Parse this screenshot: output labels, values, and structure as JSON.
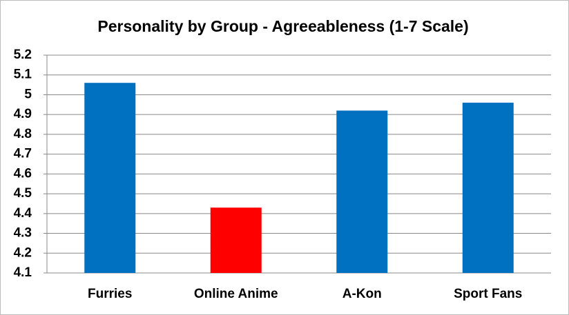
{
  "chart_data": {
    "type": "bar",
    "title": "Personality by Group - Agreeableness (1-7 Scale)",
    "categories": [
      "Furries",
      "Online Anime",
      "A-Kon",
      "Sport Fans"
    ],
    "values": [
      5.06,
      4.43,
      4.92,
      4.96
    ],
    "colors": [
      "#0070c0",
      "#ff0000",
      "#0070c0",
      "#0070c0"
    ],
    "ylim": [
      4.1,
      5.2
    ],
    "yticks": [
      4.1,
      4.2,
      4.3,
      4.4,
      4.5,
      4.6,
      4.7,
      4.8,
      4.9,
      5,
      5.1,
      5.2
    ],
    "grid": true
  }
}
